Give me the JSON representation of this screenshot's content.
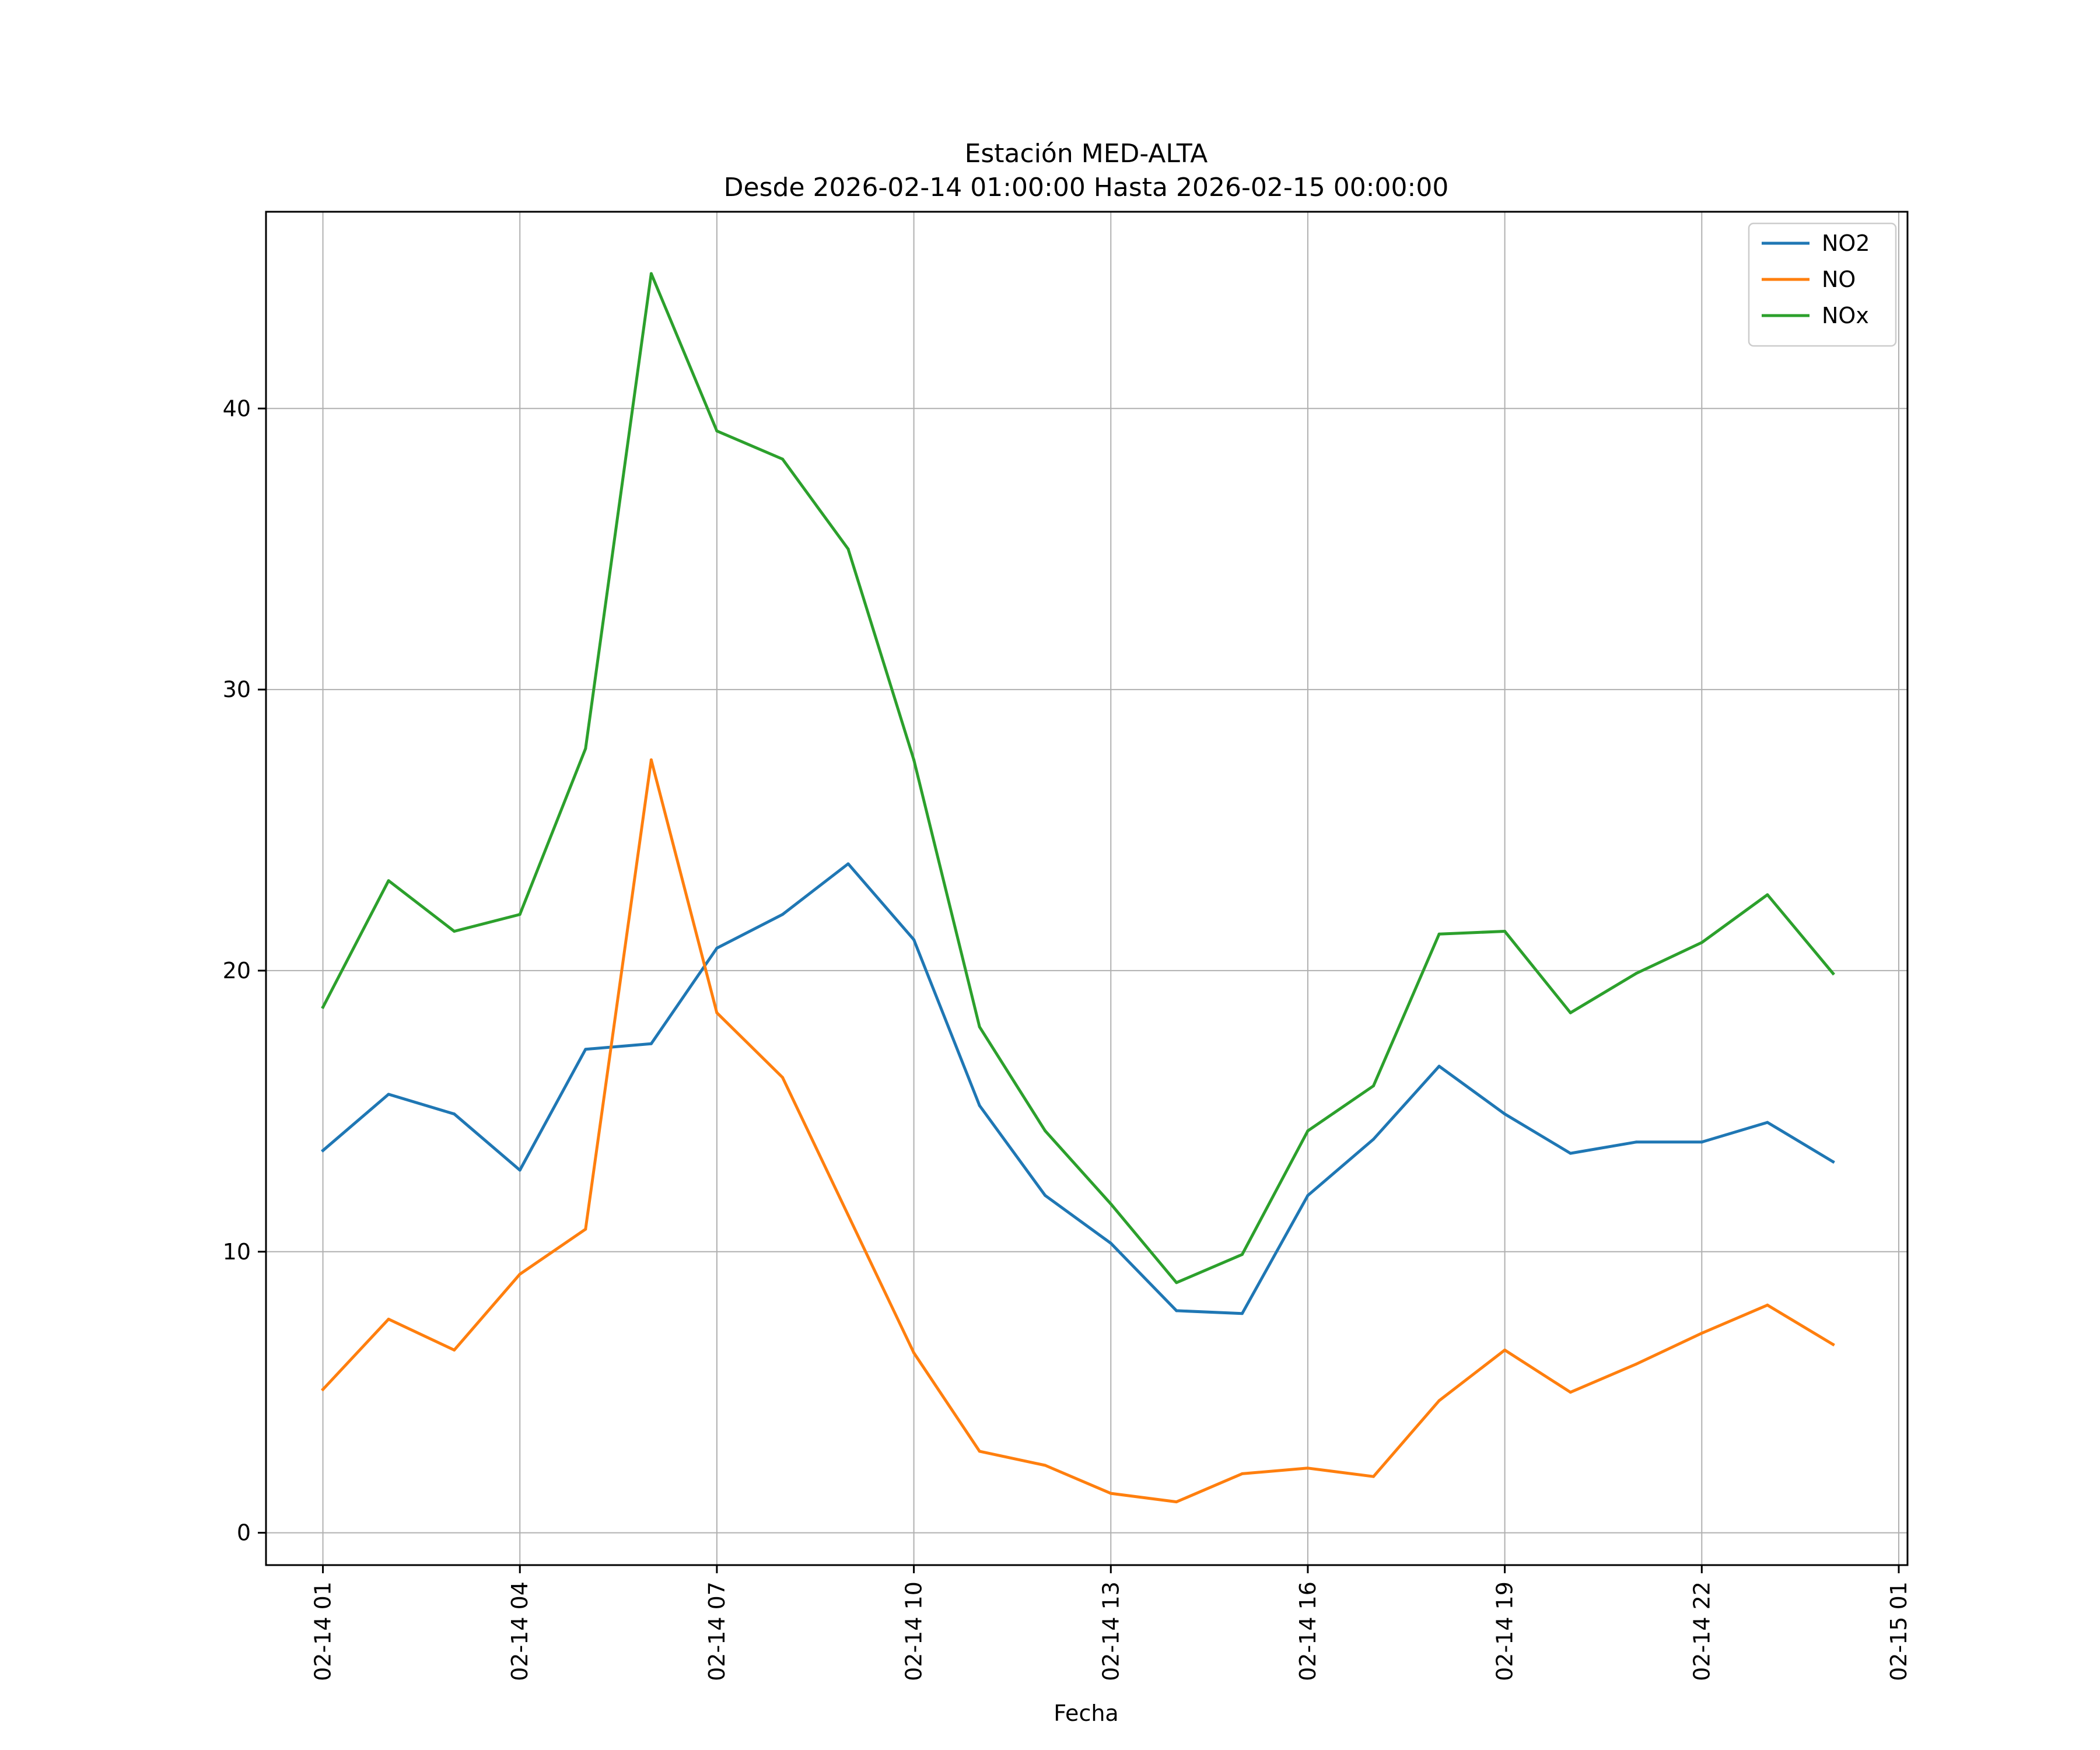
{
  "chart_data": {
    "type": "line",
    "title": "Estación MED-ALTA",
    "subtitle": "Desde 2026-02-14 01:00:00 Hasta 2026-02-15 00:00:00",
    "xlabel": "Fecha",
    "ylabel": "",
    "x": [
      "2026-02-14 01:00",
      "2026-02-14 02:00",
      "2026-02-14 03:00",
      "2026-02-14 04:00",
      "2026-02-14 05:00",
      "2026-02-14 06:00",
      "2026-02-14 07:00",
      "2026-02-14 08:00",
      "2026-02-14 09:00",
      "2026-02-14 10:00",
      "2026-02-14 11:00",
      "2026-02-14 12:00",
      "2026-02-14 13:00",
      "2026-02-14 14:00",
      "2026-02-14 15:00",
      "2026-02-14 16:00",
      "2026-02-14 17:00",
      "2026-02-14 18:00",
      "2026-02-14 19:00",
      "2026-02-14 20:00",
      "2026-02-14 21:00",
      "2026-02-14 22:00",
      "2026-02-14 23:00",
      "2026-02-15 00:00"
    ],
    "xlim": [
      "2026-02-14 00:08",
      "2026-02-15 01:08"
    ],
    "x_ticks": [
      {
        "value": "2026-02-14 01:00",
        "label": "02-14 01"
      },
      {
        "value": "2026-02-14 04:00",
        "label": "02-14 04"
      },
      {
        "value": "2026-02-14 07:00",
        "label": "02-14 07"
      },
      {
        "value": "2026-02-14 10:00",
        "label": "02-14 10"
      },
      {
        "value": "2026-02-14 13:00",
        "label": "02-14 13"
      },
      {
        "value": "2026-02-14 16:00",
        "label": "02-14 16"
      },
      {
        "value": "2026-02-14 19:00",
        "label": "02-14 19"
      },
      {
        "value": "2026-02-14 22:00",
        "label": "02-14 22"
      },
      {
        "value": "2026-02-15 01:00",
        "label": "02-15 01"
      }
    ],
    "ylim": [
      -1.15,
      47.0
    ],
    "y_ticks": [
      0,
      10,
      20,
      30,
      40
    ],
    "grid": true,
    "legend_position": "top-right",
    "series": [
      {
        "name": "NO2",
        "color": "#1f77b4",
        "values": [
          13.6,
          15.6,
          14.9,
          12.9,
          17.2,
          17.4,
          20.8,
          22.0,
          23.8,
          21.1,
          15.2,
          12.0,
          10.3,
          7.9,
          7.8,
          12.0,
          14.0,
          16.6,
          14.9,
          13.5,
          13.9,
          13.9,
          14.6,
          13.2
        ]
      },
      {
        "name": "NO",
        "color": "#ff7f0e",
        "values": [
          5.1,
          7.6,
          6.5,
          9.2,
          10.8,
          27.5,
          18.5,
          16.2,
          11.3,
          6.4,
          2.9,
          2.4,
          1.4,
          1.1,
          2.1,
          2.3,
          2.0,
          4.7,
          6.5,
          5.0,
          6.0,
          7.1,
          8.1,
          6.7
        ]
      },
      {
        "name": "NOx",
        "color": "#2ca02c",
        "values": [
          18.7,
          23.2,
          21.4,
          22.0,
          27.9,
          44.8,
          39.2,
          38.2,
          35.0,
          27.5,
          18.0,
          14.3,
          11.7,
          8.9,
          9.9,
          14.3,
          15.9,
          21.3,
          21.4,
          18.5,
          19.9,
          21.0,
          22.7,
          19.9
        ]
      }
    ]
  }
}
